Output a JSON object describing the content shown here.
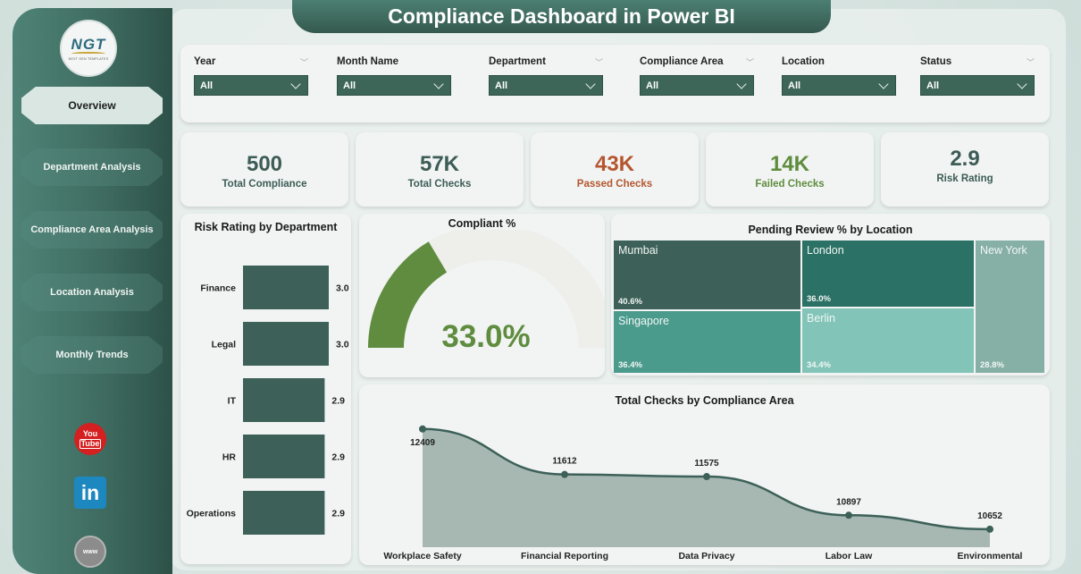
{
  "app": {
    "title": "Compliance Dashboard in Power BI",
    "logo": {
      "text": "NGT",
      "subtitle": "NEXT GEN TEMPLATES"
    }
  },
  "sidebar": {
    "items": [
      {
        "label": "Overview",
        "active": true
      },
      {
        "label": "Department Analysis",
        "active": false
      },
      {
        "label": "Compliance Area Analysis",
        "active": false
      },
      {
        "label": "Location Analysis",
        "active": false
      },
      {
        "label": "Monthly Trends",
        "active": false
      }
    ],
    "social": [
      {
        "icon": "youtube-icon",
        "line1": "You",
        "line2": "Tube"
      },
      {
        "icon": "linkedin-icon",
        "text": "in"
      },
      {
        "icon": "globe-icon",
        "text": "www"
      }
    ]
  },
  "filters": [
    {
      "label": "Year",
      "value": "All"
    },
    {
      "label": "Month Name",
      "value": "All"
    },
    {
      "label": "Department",
      "value": "All"
    },
    {
      "label": "Compliance Area",
      "value": "All"
    },
    {
      "label": "Location",
      "value": "All"
    },
    {
      "label": "Status",
      "value": "All"
    }
  ],
  "kpis": [
    {
      "value": "500",
      "label": "Total Compliance",
      "color": "#3d5c55"
    },
    {
      "value": "57K",
      "label": "Total Checks",
      "color": "#3d5c55"
    },
    {
      "value": "43K",
      "label": "Passed Checks",
      "color": "#b5562f"
    },
    {
      "value": "14K",
      "label": "Failed Checks",
      "color": "#5f8c3e"
    },
    {
      "value": "2.9",
      "label": "Risk Rating",
      "color": "#3d5c55"
    }
  ],
  "chart_data": [
    {
      "type": "bar",
      "title": "Risk Rating by Department",
      "orientation": "horizontal",
      "categories": [
        "Finance",
        "Legal",
        "IT",
        "HR",
        "Operations"
      ],
      "values": [
        3.0,
        3.0,
        2.9,
        2.9,
        2.9
      ],
      "labels": [
        "3.0",
        "3.0",
        "2.9",
        "2.9",
        "2.9"
      ],
      "color": "#3d6158"
    },
    {
      "type": "gauge",
      "title": "Compliant %",
      "value": 33.0,
      "max": 100,
      "label": "33.0%",
      "color": "#5f8c3e"
    },
    {
      "type": "treemap",
      "title": "Pending Review % by Location",
      "items": [
        {
          "name": "Mumbai",
          "value": 40.6,
          "label": "40.6%",
          "color": "#3d6158"
        },
        {
          "name": "London",
          "value": 36.0,
          "label": "36.0%",
          "color": "#2c7165"
        },
        {
          "name": "Singapore",
          "value": 36.4,
          "label": "36.4%",
          "color": "#4a9b8c"
        },
        {
          "name": "Berlin",
          "value": 34.4,
          "label": "34.4%",
          "color": "#82c5b8"
        },
        {
          "name": "New York",
          "value": 28.8,
          "label": "28.8%",
          "color": "#86b0a6"
        }
      ]
    },
    {
      "type": "area",
      "title": "Total Checks by Compliance Area",
      "categories": [
        "Workplace Safety",
        "Financial Reporting",
        "Data Privacy",
        "Labor Law",
        "Environmental"
      ],
      "values": [
        12409,
        11612,
        11575,
        10897,
        10652
      ],
      "labels": [
        "12409",
        "11612",
        "11575",
        "10897",
        "10652"
      ],
      "line_color": "#3d6158",
      "fill_color": "#a7b8b3"
    }
  ]
}
